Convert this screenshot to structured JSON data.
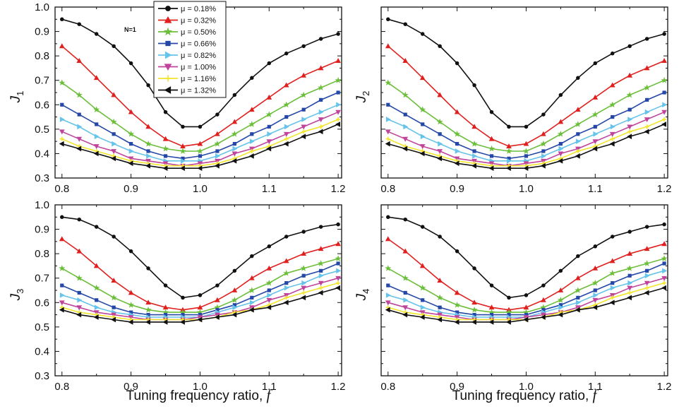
{
  "chart_data": [
    {
      "type": "line",
      "ylabel_symbol": "J",
      "ylabel_subscript": "1",
      "x": [
        0.8,
        0.825,
        0.85,
        0.875,
        0.9,
        0.925,
        0.95,
        0.975,
        1.0,
        1.025,
        1.05,
        1.075,
        1.1,
        1.125,
        1.15,
        1.175,
        1.2
      ],
      "xlim": [
        0.79,
        1.205
      ],
      "ylim": [
        0.3,
        1.0
      ],
      "xticks": [
        "0.8",
        "0.9",
        "1.0",
        "1.1",
        "1.2"
      ],
      "yticks": [
        "0.3",
        "0.4",
        "0.5",
        "0.6",
        "0.7",
        "0.8",
        "0.9",
        "1.0"
      ],
      "annotation": "N=1",
      "legend": {
        "placement": "top-left",
        "entries": [
          "μ = 0.18%",
          "μ = 0.32%",
          "μ = 0.50%",
          "μ = 0.66%",
          "μ = 0.82%",
          "μ = 1.00%",
          "μ = 1.16%",
          "μ = 1.32%"
        ]
      },
      "series": [
        {
          "name": "μ = 0.18%",
          "color": "#111111",
          "marker": "circle",
          "values": [
            0.95,
            0.93,
            0.89,
            0.84,
            0.77,
            0.68,
            0.57,
            0.51,
            0.51,
            0.56,
            0.64,
            0.71,
            0.77,
            0.81,
            0.84,
            0.87,
            0.89
          ]
        },
        {
          "name": "μ = 0.32%",
          "color": "#e0201e",
          "marker": "triangle-up",
          "values": [
            0.84,
            0.78,
            0.71,
            0.64,
            0.57,
            0.51,
            0.46,
            0.43,
            0.44,
            0.48,
            0.53,
            0.58,
            0.63,
            0.68,
            0.72,
            0.75,
            0.78
          ]
        },
        {
          "name": "μ = 0.50%",
          "color": "#6cbf3a",
          "marker": "star",
          "values": [
            0.69,
            0.64,
            0.58,
            0.53,
            0.48,
            0.44,
            0.42,
            0.41,
            0.41,
            0.44,
            0.48,
            0.52,
            0.56,
            0.6,
            0.64,
            0.67,
            0.7
          ]
        },
        {
          "name": "μ = 0.66%",
          "color": "#2548a8",
          "marker": "square",
          "values": [
            0.6,
            0.56,
            0.52,
            0.48,
            0.44,
            0.41,
            0.39,
            0.38,
            0.39,
            0.41,
            0.44,
            0.48,
            0.51,
            0.55,
            0.58,
            0.62,
            0.65
          ]
        },
        {
          "name": "μ = 0.82%",
          "color": "#66c3ea",
          "marker": "triangle-right",
          "values": [
            0.54,
            0.51,
            0.47,
            0.44,
            0.41,
            0.39,
            0.37,
            0.37,
            0.37,
            0.39,
            0.42,
            0.45,
            0.48,
            0.51,
            0.54,
            0.57,
            0.6
          ]
        },
        {
          "name": "μ = 1.00%",
          "color": "#c0449c",
          "marker": "triangle-down",
          "values": [
            0.49,
            0.46,
            0.43,
            0.41,
            0.38,
            0.37,
            0.36,
            0.35,
            0.36,
            0.37,
            0.4,
            0.42,
            0.45,
            0.48,
            0.51,
            0.54,
            0.57
          ]
        },
        {
          "name": "μ = 1.16%",
          "color": "#f2e52a",
          "marker": "cross",
          "values": [
            0.46,
            0.43,
            0.41,
            0.39,
            0.37,
            0.36,
            0.35,
            0.35,
            0.35,
            0.36,
            0.38,
            0.41,
            0.43,
            0.46,
            0.49,
            0.51,
            0.54
          ]
        },
        {
          "name": "μ = 1.32%",
          "color": "#111111",
          "marker": "triangle-left",
          "values": [
            0.44,
            0.42,
            0.4,
            0.38,
            0.36,
            0.35,
            0.34,
            0.34,
            0.34,
            0.35,
            0.37,
            0.39,
            0.42,
            0.44,
            0.47,
            0.49,
            0.52
          ]
        }
      ]
    },
    {
      "type": "line",
      "ylabel_symbol": "J",
      "ylabel_subscript": "2",
      "x": [
        0.8,
        0.825,
        0.85,
        0.875,
        0.9,
        0.925,
        0.95,
        0.975,
        1.0,
        1.025,
        1.05,
        1.075,
        1.1,
        1.125,
        1.15,
        1.175,
        1.2
      ],
      "xlim": [
        0.79,
        1.205
      ],
      "ylim": [
        0.3,
        1.0
      ],
      "xticks": [
        "0.8",
        "0.9",
        "1.0",
        "1.1",
        "1.2"
      ],
      "yticks": [],
      "series": [
        {
          "color": "#111111",
          "marker": "circle",
          "values": [
            0.95,
            0.93,
            0.89,
            0.84,
            0.77,
            0.68,
            0.57,
            0.51,
            0.51,
            0.56,
            0.64,
            0.71,
            0.77,
            0.81,
            0.84,
            0.87,
            0.89
          ]
        },
        {
          "color": "#e0201e",
          "marker": "triangle-up",
          "values": [
            0.84,
            0.78,
            0.71,
            0.64,
            0.57,
            0.51,
            0.46,
            0.43,
            0.44,
            0.48,
            0.53,
            0.58,
            0.63,
            0.68,
            0.72,
            0.75,
            0.78
          ]
        },
        {
          "color": "#6cbf3a",
          "marker": "star",
          "values": [
            0.69,
            0.64,
            0.58,
            0.53,
            0.48,
            0.44,
            0.42,
            0.41,
            0.41,
            0.44,
            0.48,
            0.52,
            0.56,
            0.6,
            0.64,
            0.67,
            0.7
          ]
        },
        {
          "color": "#2548a8",
          "marker": "square",
          "values": [
            0.6,
            0.56,
            0.52,
            0.48,
            0.44,
            0.41,
            0.39,
            0.38,
            0.39,
            0.41,
            0.44,
            0.48,
            0.51,
            0.55,
            0.58,
            0.62,
            0.65
          ]
        },
        {
          "color": "#66c3ea",
          "marker": "triangle-right",
          "values": [
            0.54,
            0.51,
            0.47,
            0.44,
            0.41,
            0.39,
            0.37,
            0.37,
            0.37,
            0.39,
            0.42,
            0.45,
            0.48,
            0.51,
            0.54,
            0.57,
            0.6
          ]
        },
        {
          "color": "#c0449c",
          "marker": "triangle-down",
          "values": [
            0.49,
            0.46,
            0.43,
            0.41,
            0.38,
            0.37,
            0.36,
            0.35,
            0.36,
            0.37,
            0.4,
            0.42,
            0.45,
            0.48,
            0.51,
            0.54,
            0.57
          ]
        },
        {
          "color": "#f2e52a",
          "marker": "cross",
          "values": [
            0.46,
            0.43,
            0.41,
            0.39,
            0.37,
            0.36,
            0.35,
            0.35,
            0.35,
            0.36,
            0.38,
            0.41,
            0.43,
            0.46,
            0.49,
            0.51,
            0.54
          ]
        },
        {
          "color": "#111111",
          "marker": "triangle-left",
          "values": [
            0.44,
            0.42,
            0.4,
            0.38,
            0.36,
            0.35,
            0.34,
            0.34,
            0.34,
            0.35,
            0.37,
            0.39,
            0.42,
            0.44,
            0.47,
            0.49,
            0.52
          ]
        }
      ]
    },
    {
      "type": "line",
      "ylabel_symbol": "J",
      "ylabel_subscript": "3",
      "xlabel": "Tuning frequency ratio, ",
      "xlabel_symbol": "f",
      "x": [
        0.8,
        0.825,
        0.85,
        0.875,
        0.9,
        0.925,
        0.95,
        0.975,
        1.0,
        1.025,
        1.05,
        1.075,
        1.1,
        1.125,
        1.15,
        1.175,
        1.2
      ],
      "xlim": [
        0.79,
        1.205
      ],
      "ylim": [
        0.3,
        1.0
      ],
      "xticks": [
        "0.8",
        "0.9",
        "1.0",
        "1.1",
        "1.2"
      ],
      "yticks": [
        "0.3",
        "0.4",
        "0.5",
        "0.6",
        "0.7",
        "0.8",
        "0.9",
        "1.0"
      ],
      "series": [
        {
          "color": "#111111",
          "marker": "circle",
          "values": [
            0.95,
            0.94,
            0.91,
            0.87,
            0.81,
            0.74,
            0.67,
            0.62,
            0.63,
            0.67,
            0.73,
            0.79,
            0.83,
            0.87,
            0.89,
            0.91,
            0.92
          ]
        },
        {
          "color": "#e0201e",
          "marker": "triangle-up",
          "values": [
            0.86,
            0.81,
            0.75,
            0.69,
            0.64,
            0.6,
            0.58,
            0.57,
            0.58,
            0.61,
            0.65,
            0.7,
            0.74,
            0.77,
            0.8,
            0.82,
            0.84
          ]
        },
        {
          "color": "#6cbf3a",
          "marker": "star",
          "values": [
            0.74,
            0.7,
            0.66,
            0.62,
            0.59,
            0.57,
            0.56,
            0.56,
            0.56,
            0.58,
            0.61,
            0.65,
            0.68,
            0.72,
            0.74,
            0.76,
            0.78
          ]
        },
        {
          "color": "#2548a8",
          "marker": "square",
          "values": [
            0.67,
            0.64,
            0.61,
            0.58,
            0.56,
            0.55,
            0.55,
            0.55,
            0.55,
            0.57,
            0.59,
            0.62,
            0.65,
            0.68,
            0.71,
            0.73,
            0.76
          ]
        },
        {
          "color": "#66c3ea",
          "marker": "triangle-right",
          "values": [
            0.63,
            0.61,
            0.58,
            0.56,
            0.55,
            0.54,
            0.54,
            0.54,
            0.54,
            0.56,
            0.58,
            0.6,
            0.63,
            0.66,
            0.68,
            0.71,
            0.73
          ]
        },
        {
          "color": "#c0449c",
          "marker": "triangle-down",
          "values": [
            0.6,
            0.58,
            0.56,
            0.55,
            0.54,
            0.53,
            0.53,
            0.53,
            0.54,
            0.55,
            0.56,
            0.58,
            0.61,
            0.63,
            0.66,
            0.68,
            0.7
          ]
        },
        {
          "color": "#f2e52a",
          "marker": "cross",
          "values": [
            0.58,
            0.56,
            0.55,
            0.54,
            0.53,
            0.53,
            0.53,
            0.53,
            0.53,
            0.54,
            0.56,
            0.57,
            0.59,
            0.62,
            0.64,
            0.66,
            0.68
          ]
        },
        {
          "color": "#111111",
          "marker": "triangle-left",
          "values": [
            0.57,
            0.55,
            0.54,
            0.53,
            0.52,
            0.52,
            0.52,
            0.52,
            0.53,
            0.54,
            0.55,
            0.57,
            0.58,
            0.6,
            0.62,
            0.64,
            0.66
          ]
        }
      ]
    },
    {
      "type": "line",
      "ylabel_symbol": "J",
      "ylabel_subscript": "4",
      "xlabel": "Tuning frequency ratio, ",
      "xlabel_symbol": "f",
      "x": [
        0.8,
        0.825,
        0.85,
        0.875,
        0.9,
        0.925,
        0.95,
        0.975,
        1.0,
        1.025,
        1.05,
        1.075,
        1.1,
        1.125,
        1.15,
        1.175,
        1.2
      ],
      "xlim": [
        0.79,
        1.205
      ],
      "ylim": [
        0.3,
        1.0
      ],
      "xticks": [
        "0.8",
        "0.9",
        "1.0",
        "1.1",
        "1.2"
      ],
      "yticks": [],
      "series": [
        {
          "color": "#111111",
          "marker": "circle",
          "values": [
            0.95,
            0.94,
            0.91,
            0.87,
            0.81,
            0.74,
            0.67,
            0.62,
            0.63,
            0.67,
            0.73,
            0.79,
            0.83,
            0.87,
            0.89,
            0.91,
            0.92
          ]
        },
        {
          "color": "#e0201e",
          "marker": "triangle-up",
          "values": [
            0.86,
            0.81,
            0.75,
            0.69,
            0.64,
            0.6,
            0.58,
            0.57,
            0.58,
            0.61,
            0.65,
            0.7,
            0.74,
            0.77,
            0.8,
            0.82,
            0.84
          ]
        },
        {
          "color": "#6cbf3a",
          "marker": "star",
          "values": [
            0.74,
            0.7,
            0.66,
            0.62,
            0.59,
            0.57,
            0.56,
            0.56,
            0.56,
            0.58,
            0.61,
            0.65,
            0.68,
            0.72,
            0.74,
            0.76,
            0.78
          ]
        },
        {
          "color": "#2548a8",
          "marker": "square",
          "values": [
            0.67,
            0.64,
            0.61,
            0.58,
            0.56,
            0.55,
            0.55,
            0.55,
            0.55,
            0.57,
            0.59,
            0.62,
            0.65,
            0.68,
            0.71,
            0.73,
            0.76
          ]
        },
        {
          "color": "#66c3ea",
          "marker": "triangle-right",
          "values": [
            0.63,
            0.61,
            0.58,
            0.56,
            0.55,
            0.54,
            0.54,
            0.54,
            0.54,
            0.56,
            0.58,
            0.6,
            0.63,
            0.66,
            0.68,
            0.71,
            0.73
          ]
        },
        {
          "color": "#c0449c",
          "marker": "triangle-down",
          "values": [
            0.6,
            0.58,
            0.56,
            0.55,
            0.54,
            0.53,
            0.53,
            0.53,
            0.54,
            0.55,
            0.56,
            0.58,
            0.61,
            0.63,
            0.66,
            0.68,
            0.7
          ]
        },
        {
          "color": "#f2e52a",
          "marker": "cross",
          "values": [
            0.58,
            0.56,
            0.55,
            0.54,
            0.53,
            0.53,
            0.53,
            0.53,
            0.53,
            0.54,
            0.56,
            0.57,
            0.59,
            0.62,
            0.64,
            0.66,
            0.68
          ]
        },
        {
          "color": "#111111",
          "marker": "triangle-left",
          "values": [
            0.57,
            0.55,
            0.54,
            0.53,
            0.52,
            0.52,
            0.52,
            0.52,
            0.53,
            0.54,
            0.55,
            0.57,
            0.58,
            0.6,
            0.62,
            0.64,
            0.66
          ]
        }
      ]
    }
  ]
}
